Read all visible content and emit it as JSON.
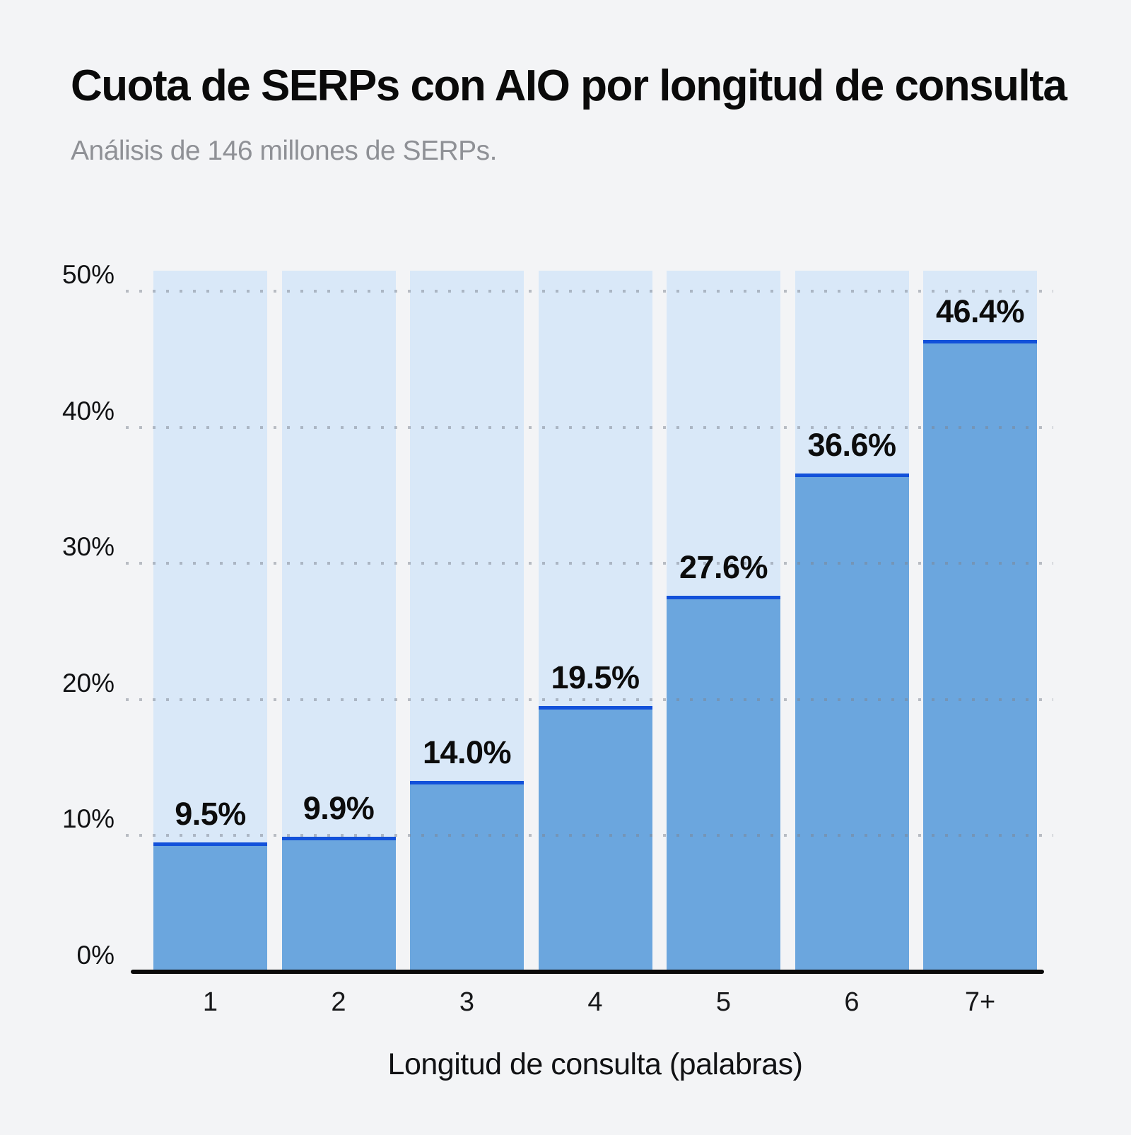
{
  "header": {
    "title": "Cuota de SERPs con AIO por longitud de consulta",
    "subtitle": "Análisis de 146 millones de SERPs."
  },
  "chart_data": {
    "type": "bar",
    "title": "Cuota de SERPs con AIO por longitud de consulta",
    "subtitle": "Análisis de 146 millones de SERPs.",
    "xlabel": "Longitud de consulta (palabras)",
    "ylabel": "",
    "categories": [
      "1",
      "2",
      "3",
      "4",
      "5",
      "6",
      "7+"
    ],
    "values": [
      9.5,
      9.9,
      14.0,
      19.5,
      27.6,
      36.6,
      46.4
    ],
    "value_labels": [
      "9.5%",
      "9.9%",
      "14.0%",
      "19.5%",
      "27.6%",
      "36.6%",
      "46.4%"
    ],
    "y_ticks": [
      {
        "label": "0%",
        "value": 0
      },
      {
        "label": "10%",
        "value": 10
      },
      {
        "label": "20%",
        "value": 20
      },
      {
        "label": "30%",
        "value": 30
      },
      {
        "label": "40%",
        "value": 40
      },
      {
        "label": "50%",
        "value": 50
      }
    ],
    "gridline_values": [
      10,
      20,
      30,
      40,
      50
    ],
    "ylim": [
      0,
      51.5
    ],
    "grid": "dotted-horizontal",
    "legend": "none",
    "colors": {
      "background": "#f3f4f6",
      "bar_track": "#d9e8f8",
      "bar_fill": "#6ba6de",
      "bar_top_line": "#1251da",
      "grid_dots": "#7d8490",
      "axis_line": "#0a0a0a",
      "title_text": "#0a0a0a",
      "subtitle_text": "#8f9196",
      "label_text": "#0c0c0c"
    }
  }
}
